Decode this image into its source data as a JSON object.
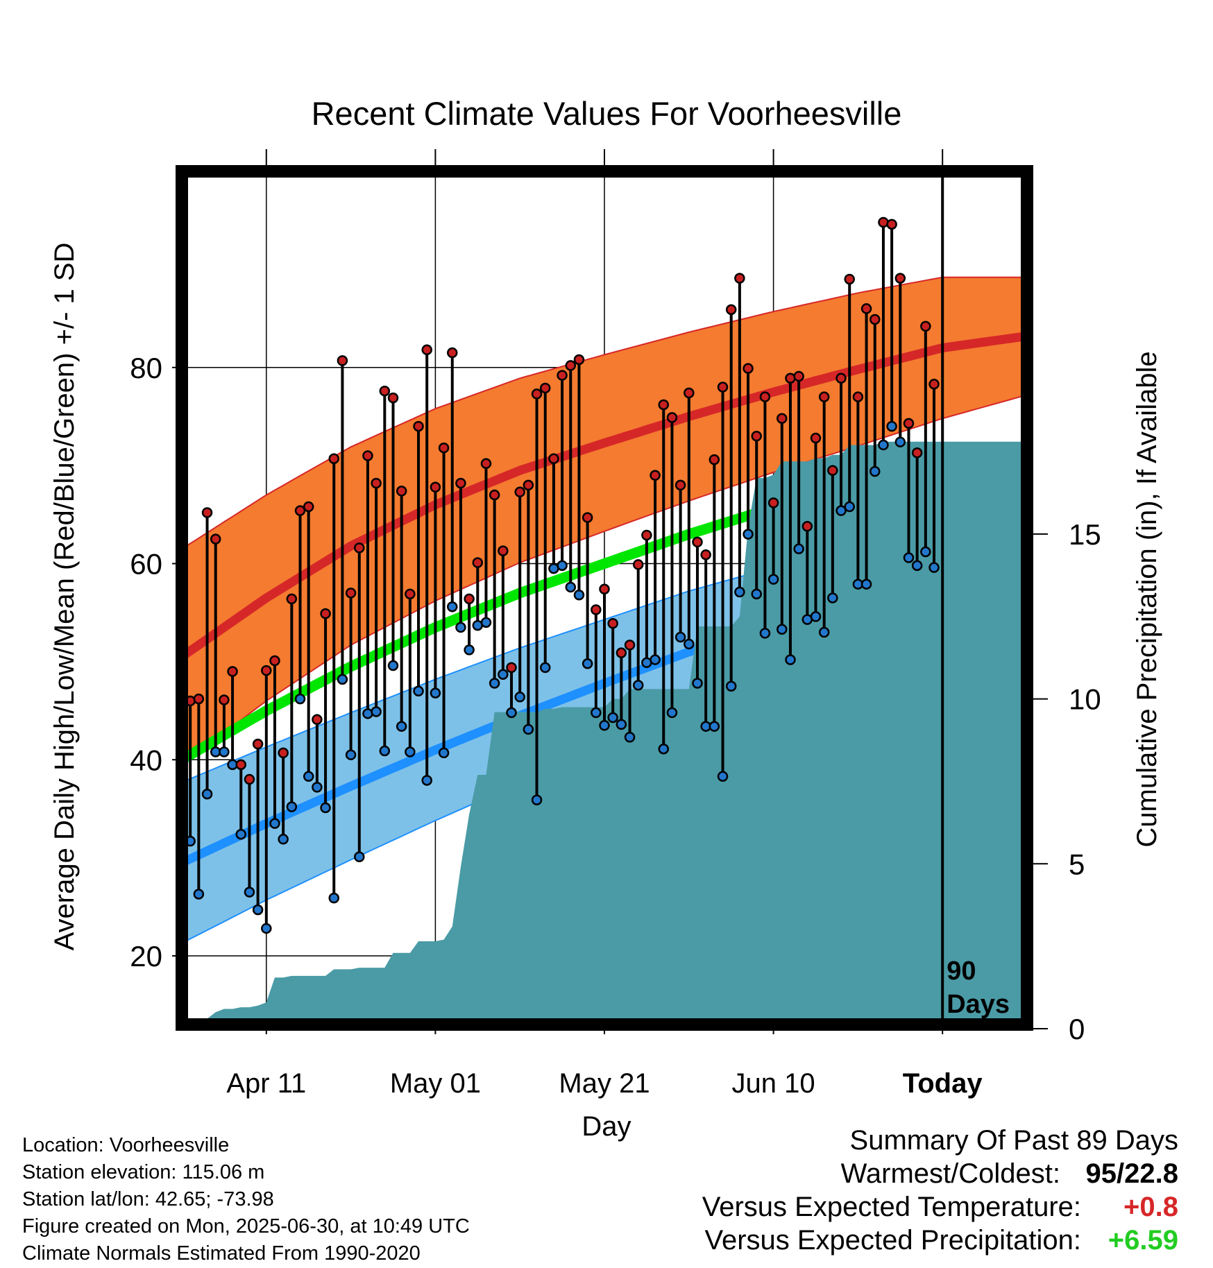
{
  "chart_data": {
    "type": "line",
    "title": "Recent Climate Values For Voorheesville",
    "xlabel": "Day",
    "ylabel": "Average Daily High/Low/Mean (Red/Blue/Green) +/- 1 SD",
    "y2label": "Cumulative Precipitation (in), If Available",
    "x_tick_labels": [
      "Apr 11",
      "May 01",
      "May 21",
      "Jun 10",
      "Today"
    ],
    "x_tick_days": [
      10,
      30,
      50,
      70,
      90
    ],
    "x_range_days": [
      0,
      100
    ],
    "ylim": [
      13,
      100
    ],
    "y_ticks": [
      20,
      40,
      60,
      80
    ],
    "y2lim": [
      0,
      26
    ],
    "y2_ticks": [
      0,
      5,
      10,
      15
    ],
    "grid": true,
    "today_label": "90\nDays",
    "colors": {
      "high_band": "#F47B30",
      "high_line": "#D62728",
      "low_band": "#7EC1E8",
      "low_line": "#1E90FF",
      "mean_line": "#00E600",
      "precip": "#4A9BA6",
      "high_dot": "#C82020",
      "low_dot": "#2277CC"
    },
    "normals": {
      "day": [
        0,
        10,
        20,
        30,
        40,
        50,
        60,
        70,
        80,
        90,
        100
      ],
      "high": [
        50.5,
        56.5,
        61.8,
        66.0,
        69.5,
        72.3,
        75.0,
        77.5,
        79.8,
        82.0,
        83.2
      ],
      "high_sd": [
        11,
        10.5,
        10.1,
        9.8,
        9.4,
        9.0,
        8.6,
        8.2,
        7.8,
        7.2,
        6.0
      ],
      "low": [
        29.5,
        33.5,
        37.3,
        41.0,
        44.5,
        47.8,
        51.0,
        53.8,
        56.5,
        58.8,
        60.2
      ],
      "low_sd": [
        8.2,
        7.8,
        7.5,
        7.2,
        6.9,
        6.5,
        6.2,
        5.8,
        5.5,
        5.2,
        5.0
      ],
      "mean": [
        40.0,
        45.0,
        49.5,
        53.5,
        57.0,
        60.0,
        63.0,
        65.7,
        68.2,
        70.4,
        71.7
      ]
    },
    "series": [
      {
        "name": "High",
        "values": [
          46,
          46.2,
          65.2,
          62.5,
          46.1,
          49,
          39.5,
          38,
          41.6,
          49.1,
          50.1,
          40.7,
          56.4,
          65.4,
          65.8,
          44.1,
          54.9,
          70.7,
          80.7,
          57,
          61.6,
          71,
          68.2,
          77.6,
          76.9,
          67.4,
          56.9,
          74,
          81.8,
          67.8,
          71.8,
          81.5,
          68.2,
          56.4,
          60.1,
          70.2,
          67,
          61.3,
          49.4,
          67.3,
          68,
          77.3,
          77.9,
          70.7,
          79.2,
          80.2,
          80.8,
          64.7,
          55.3,
          57.4,
          53.9,
          50.9,
          51.7,
          59.9,
          62.9,
          69,
          76.2,
          74.9,
          68,
          77.4,
          62.2,
          60.9,
          70.6,
          78,
          85.9,
          89.1,
          79.9,
          73,
          77,
          66.2,
          74.8,
          78.9,
          79.1,
          63.8,
          72.8,
          77,
          69.5,
          78.9,
          89,
          77,
          86,
          84.9,
          94.8,
          94.6,
          89.1,
          74.3,
          71.3,
          84.2,
          78.3
        ]
      },
      {
        "name": "Low",
        "values": [
          31.7,
          26.3,
          36.5,
          40.8,
          40.8,
          39.5,
          32.4,
          26.5,
          24.7,
          22.8,
          33.5,
          31.9,
          35.2,
          46.2,
          38.3,
          37.2,
          35.1,
          25.9,
          48.2,
          40.5,
          30.1,
          44.7,
          44.9,
          40.9,
          49.6,
          43.4,
          40.8,
          47,
          37.9,
          46.8,
          40.7,
          55.6,
          53.5,
          51.2,
          53.7,
          54,
          47.8,
          48.7,
          44.8,
          46.4,
          43.1,
          35.9,
          49.4,
          59.5,
          59.8,
          57.6,
          56.8,
          49.8,
          44.8,
          43.5,
          44.3,
          43.6,
          42.3,
          47.6,
          49.9,
          50.2,
          41.1,
          44.8,
          52.5,
          51.8,
          47.8,
          43.4,
          43.4,
          38.3,
          47.5,
          57.1,
          63,
          56.9,
          52.9,
          58.4,
          53.3,
          50.2,
          61.5,
          54.3,
          54.6,
          53,
          56.5,
          65.4,
          65.8,
          57.9,
          57.9,
          69.4,
          72.1,
          74,
          72.4,
          60.6,
          59.8,
          61.2,
          59.6
        ]
      }
    ],
    "precip": {
      "day": [
        0,
        1,
        2,
        3,
        4,
        5,
        6,
        7,
        8,
        9,
        10,
        11,
        12,
        13,
        14,
        15,
        16,
        17,
        18,
        19,
        20,
        21,
        22,
        23,
        24,
        25,
        26,
        27,
        28,
        29,
        30,
        31,
        32,
        33,
        34,
        35,
        36,
        37,
        38,
        39,
        40,
        41,
        42,
        43,
        44,
        45,
        46,
        47,
        48,
        49,
        50,
        51,
        52,
        53,
        54,
        55,
        56,
        57,
        58,
        59,
        60,
        61,
        62,
        63,
        64,
        65,
        66,
        67,
        68,
        69,
        70,
        71,
        72,
        73,
        74,
        75,
        76,
        77,
        78,
        79,
        80,
        81,
        82,
        83,
        84,
        85,
        86,
        87,
        88,
        89,
        100
      ],
      "inches": [
        0,
        0.05,
        0.1,
        0.3,
        0.5,
        0.6,
        0.6,
        0.65,
        0.65,
        0.7,
        0.8,
        1.55,
        1.55,
        1.6,
        1.6,
        1.6,
        1.6,
        1.6,
        1.8,
        1.8,
        1.8,
        1.85,
        1.85,
        1.85,
        1.85,
        2.3,
        2.3,
        2.3,
        2.65,
        2.65,
        2.65,
        2.7,
        3.1,
        4.9,
        6.5,
        7.7,
        7.7,
        9.6,
        9.6,
        9.6,
        9.6,
        9.6,
        9.6,
        9.7,
        9.7,
        9.75,
        9.75,
        9.75,
        9.75,
        9.75,
        9.75,
        10.0,
        10.0,
        10.3,
        10.3,
        10.3,
        10.3,
        10.3,
        10.3,
        10.3,
        10.3,
        12.2,
        12.2,
        12.2,
        12.2,
        12.2,
        12.5,
        15.2,
        16.7,
        16.7,
        16.8,
        17.2,
        17.2,
        17.2,
        17.2,
        17.3,
        17.3,
        17.4,
        17.4,
        17.7,
        17.7,
        17.7,
        17.7,
        17.8,
        17.8,
        17.8,
        17.8,
        17.8,
        17.8,
        17.8,
        17.8
      ]
    }
  },
  "location_info": {
    "location": "Location: Voorheesville",
    "elevation": "Station elevation: 115.06 m",
    "latlon": "Station lat/lon: 42.65; -73.98",
    "created": "Figure created on Mon, 2025-06-30, at 10:49 UTC",
    "normals": "Climate Normals Estimated From 1990-2020"
  },
  "summary": {
    "heading": "Summary Of Past 89 Days",
    "warmest_label": "Warmest/Coldest:",
    "warmest_value": "95/22.8",
    "temp_label": "Versus Expected Temperature:",
    "temp_value": "+0.8",
    "temp_color": "#D62728",
    "precip_label": "Versus Expected Precipitation:",
    "precip_value": "+6.59",
    "precip_color": "#22CC22"
  }
}
